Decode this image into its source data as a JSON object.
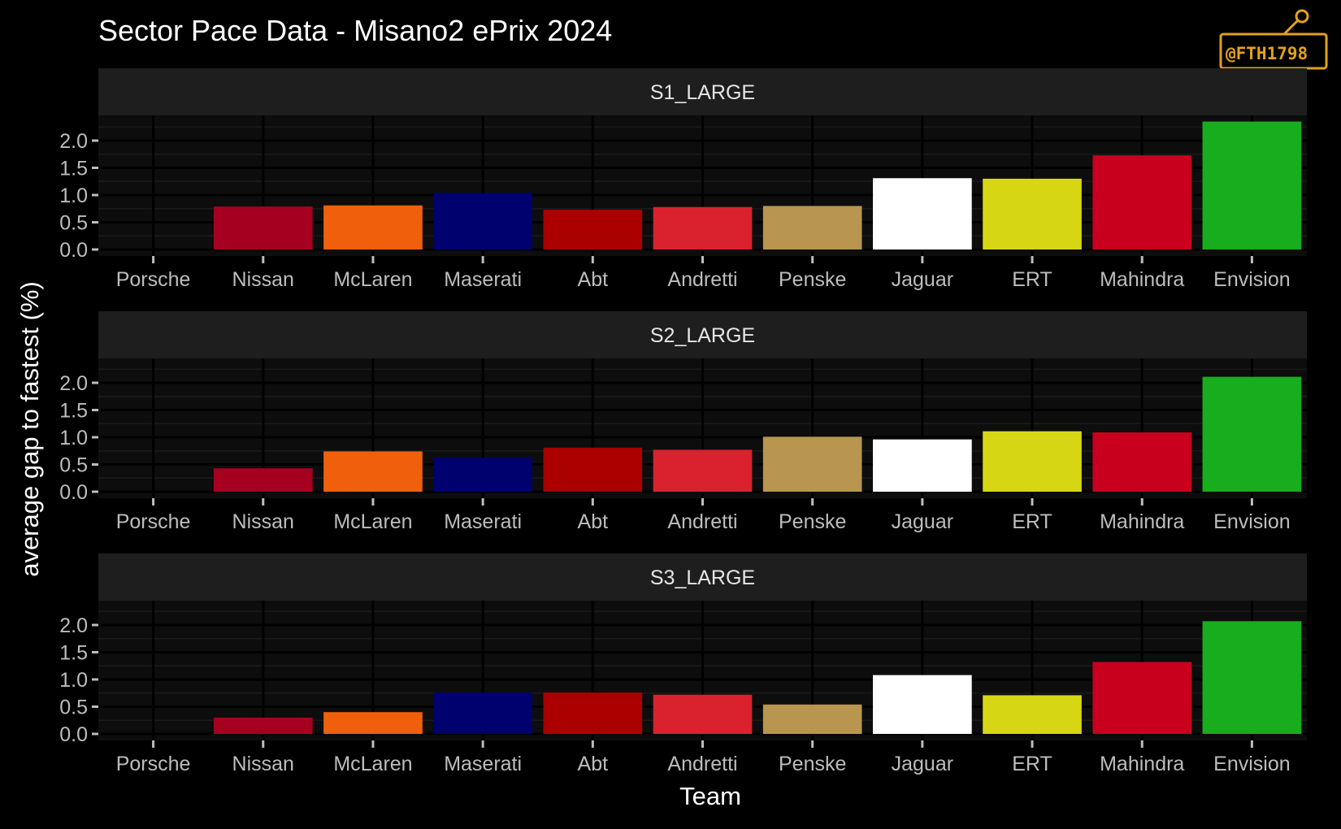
{
  "title": "Sector Pace Data - Misano2 ePrix 2024",
  "watermark": {
    "text": "@FTH1798",
    "color": "#e3a21a"
  },
  "colors": {
    "background": "#000000",
    "panel": "#0d0d0d",
    "strip": "#1e1e1e",
    "grid_major": "#000000",
    "grid_minor": "#1a1a1a",
    "tick": "#bdbdbd"
  },
  "chart_data": {
    "type": "bar",
    "facets": [
      "S1_LARGE",
      "S2_LARGE",
      "S3_LARGE"
    ],
    "categories": [
      "Porsche",
      "Nissan",
      "McLaren",
      "Maserati",
      "Abt",
      "Andretti",
      "Penske",
      "Jaguar",
      "ERT",
      "Mahindra",
      "Envision"
    ],
    "bar_colors": [
      "#000000",
      "#a60020",
      "#f0600c",
      "#00006e",
      "#aa0000",
      "#d9222e",
      "#b8964f",
      "#ffffff",
      "#d6d614",
      "#c8001e",
      "#17ad1f"
    ],
    "series": [
      {
        "name": "S1_LARGE",
        "values": [
          0.0,
          0.79,
          0.81,
          1.04,
          0.73,
          0.78,
          0.8,
          1.31,
          1.3,
          1.73,
          2.35
        ]
      },
      {
        "name": "S2_LARGE",
        "values": [
          0.0,
          0.43,
          0.74,
          0.63,
          0.81,
          0.77,
          1.01,
          0.96,
          1.11,
          1.09,
          2.11
        ]
      },
      {
        "name": "S3_LARGE",
        "values": [
          0.0,
          0.3,
          0.4,
          0.76,
          0.76,
          0.72,
          0.54,
          1.08,
          0.71,
          1.32,
          2.07
        ]
      }
    ],
    "yticks": [
      "0.0",
      "0.5",
      "1.0",
      "1.5",
      "2.0"
    ],
    "ylim": [
      0,
      2.35
    ],
    "xlabel": "Team",
    "ylabel": "average gap to fastest (%)",
    "grid": true,
    "legend": "none"
  }
}
